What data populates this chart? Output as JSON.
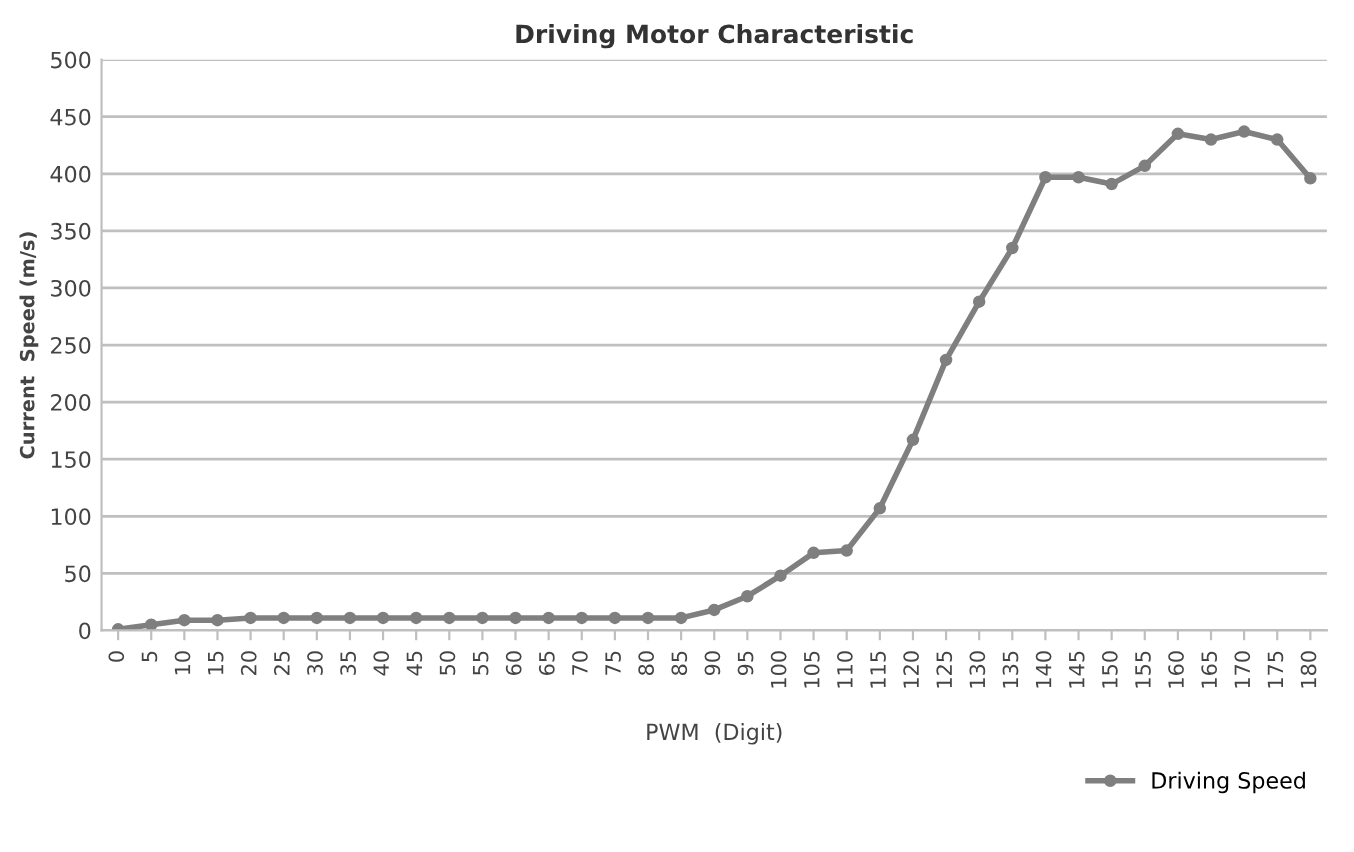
{
  "chart_data": {
    "type": "line",
    "title": "Driving Motor Characteristic",
    "xlabel": "PWM  (Digit)",
    "ylabel": "Current  Speed (m/s)",
    "categories": [
      "0",
      "5",
      "10",
      "15",
      "20",
      "25",
      "30",
      "35",
      "40",
      "45",
      "50",
      "55",
      "60",
      "65",
      "70",
      "75",
      "80",
      "85",
      "90",
      "95",
      "100",
      "105",
      "110",
      "115",
      "120",
      "125",
      "130",
      "135",
      "140",
      "145",
      "150",
      "155",
      "160",
      "165",
      "170",
      "175",
      "180"
    ],
    "series": [
      {
        "name": "Driving Speed",
        "color": "#7f7f7f",
        "values": [
          1,
          5,
          9,
          9,
          11,
          11,
          11,
          11,
          11,
          11,
          11,
          11,
          11,
          11,
          11,
          11,
          11,
          11,
          18,
          30,
          48,
          68,
          70,
          107,
          167,
          237,
          288,
          335,
          397,
          397,
          391,
          407,
          435,
          430,
          437,
          430,
          396
        ]
      }
    ],
    "ylim": [
      0,
      500
    ],
    "yticks": [
      0,
      50,
      100,
      150,
      200,
      250,
      300,
      350,
      400,
      450,
      500
    ],
    "grid": "y",
    "legend": "bottom right",
    "marker": "circle",
    "line_style": "solid"
  }
}
